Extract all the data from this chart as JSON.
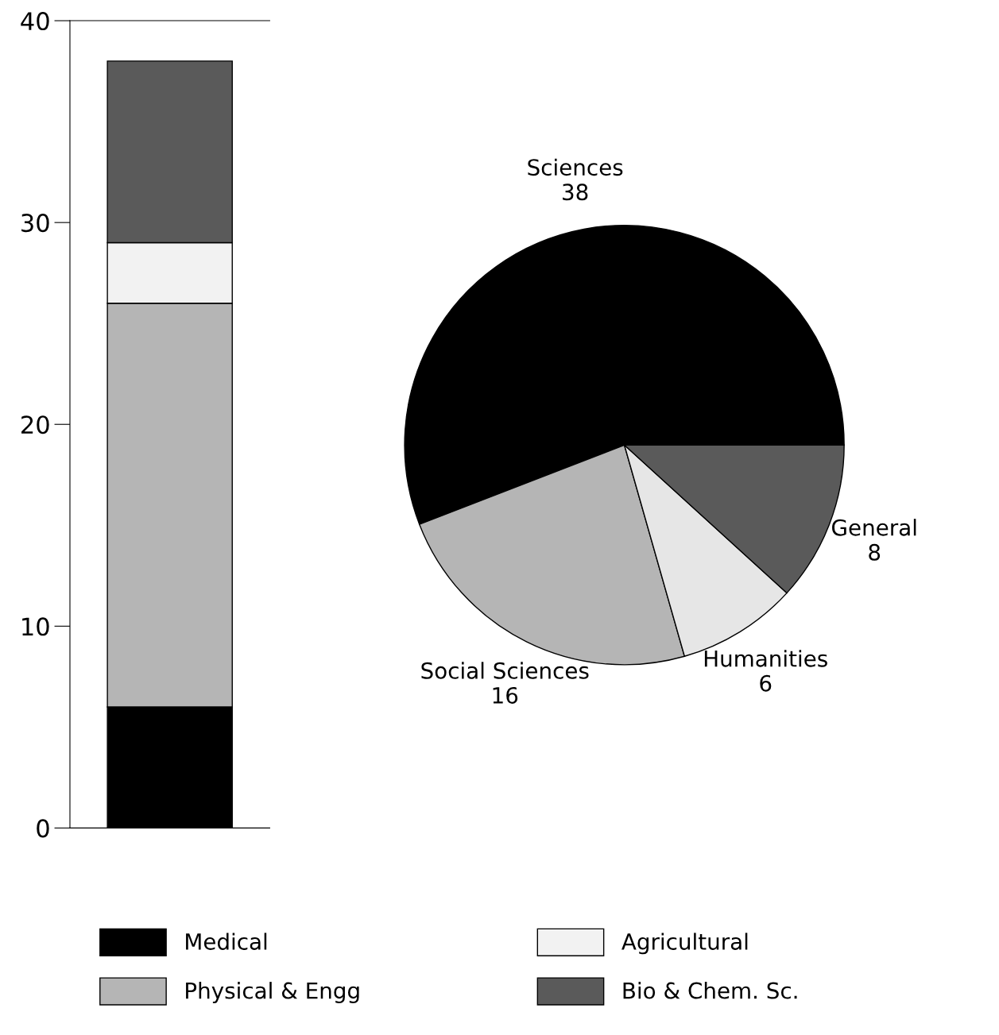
{
  "chart_data": [
    {
      "type": "bar",
      "stacked": true,
      "categories": [
        null
      ],
      "ylim": [
        0,
        40
      ],
      "yticks": [
        0,
        10,
        20,
        30,
        40
      ],
      "grid": false,
      "legend": "bottom",
      "series": [
        {
          "name": "Medical",
          "color": "#000000",
          "values": [
            6
          ]
        },
        {
          "name": "Physical & Engg",
          "color": "#b5b5b5",
          "values": [
            20
          ]
        },
        {
          "name": "Agricultural",
          "color": "#f2f2f2",
          "values": [
            3
          ]
        },
        {
          "name": "Bio & Chem. Sc.",
          "color": "#5a5a5a",
          "values": [
            9
          ]
        }
      ]
    },
    {
      "type": "pie",
      "categories": [
        "Sciences",
        "Social Sciences",
        "Humanities",
        "General"
      ],
      "values": [
        38,
        16,
        6,
        8
      ],
      "data_labels": true,
      "colors": [
        "#000000",
        "#b5b5b5",
        "#e6e6e6",
        "#5a5a5a"
      ]
    }
  ]
}
